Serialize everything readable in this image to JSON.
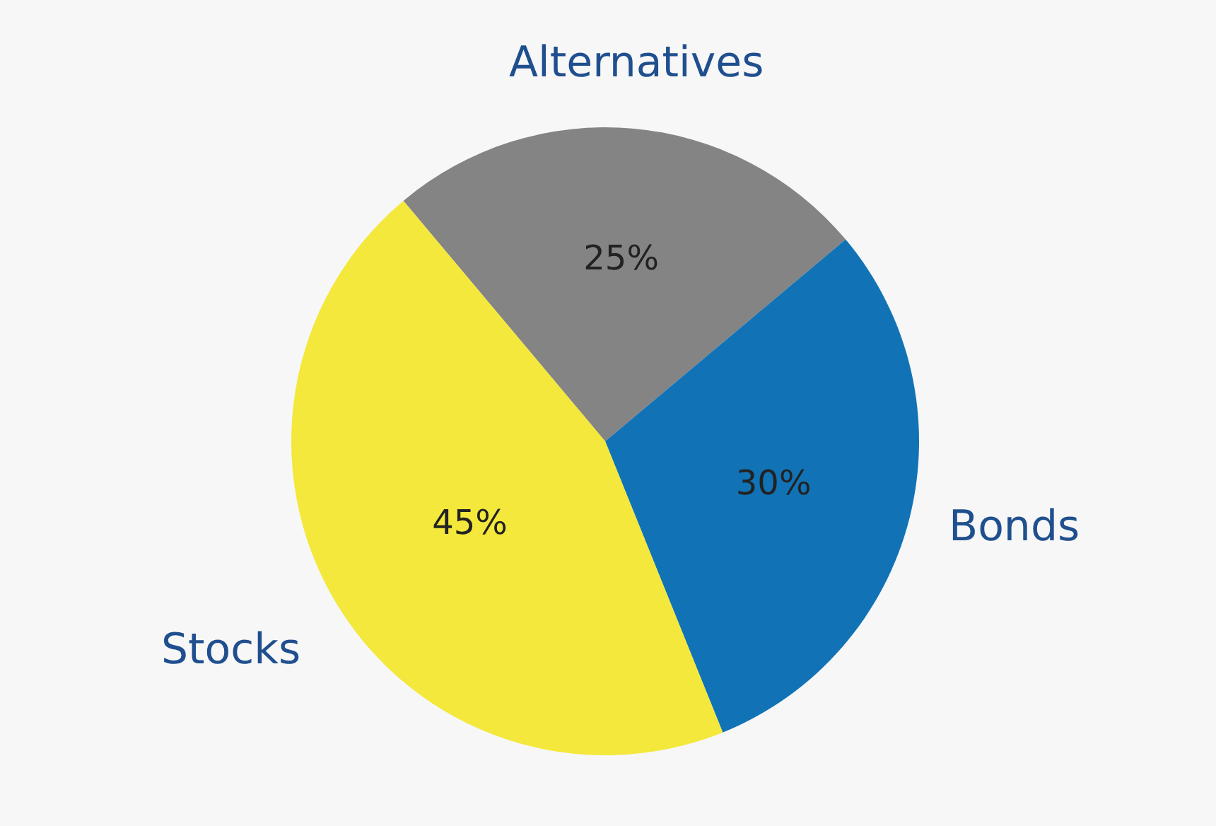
{
  "chart_data": {
    "type": "pie",
    "categories": [
      "Alternatives",
      "Bonds",
      "Stocks"
    ],
    "values": [
      25,
      30,
      45
    ],
    "colors": [
      "#848484",
      "#1173b6",
      "#f3e83b"
    ],
    "value_labels": [
      "25%",
      "30%",
      "45%"
    ],
    "legend": false
  }
}
